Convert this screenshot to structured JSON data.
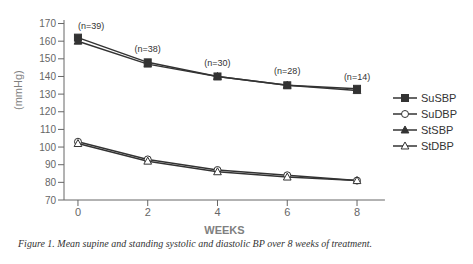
{
  "chart_data": {
    "type": "line",
    "x": [
      0,
      2,
      4,
      6,
      8
    ],
    "series": [
      {
        "name": "SuSBP",
        "color": "#333333",
        "marker": "square",
        "values": [
          162,
          148,
          140,
          135,
          133
        ]
      },
      {
        "name": "SuDBP",
        "color": "#333333",
        "marker": "circle-open",
        "values": [
          103,
          93,
          87,
          84,
          81
        ]
      },
      {
        "name": "StSBP",
        "color": "#333333",
        "marker": "triangle",
        "values": [
          160,
          147,
          140,
          135,
          132
        ]
      },
      {
        "name": "StDBP",
        "color": "#333333",
        "marker": "triangle-open",
        "values": [
          102,
          92,
          86,
          83,
          81
        ]
      }
    ],
    "xlabel": "WEEKS",
    "ylabel": "(mmHg)",
    "xlim": [
      -0.4,
      8.8
    ],
    "xticks": [
      0,
      2,
      4,
      6,
      8
    ],
    "ylim": [
      70,
      172
    ],
    "yticks": [
      70,
      80,
      90,
      100,
      110,
      120,
      130,
      140,
      150,
      160,
      170
    ],
    "annotations": [
      {
        "x": 0,
        "y": 166,
        "text": "(n=39)"
      },
      {
        "x": 2,
        "y": 153,
        "text": "(n=38)"
      },
      {
        "x": 4,
        "y": 145,
        "text": "(n=30)"
      },
      {
        "x": 6,
        "y": 140,
        "text": "(n=28)"
      },
      {
        "x": 8,
        "y": 137,
        "text": "(n=14)"
      }
    ],
    "caption": "Figure 1. Mean supine and standing systolic and diastolic BP over 8 weeks of treatment.",
    "legend": "right",
    "grid": false
  }
}
